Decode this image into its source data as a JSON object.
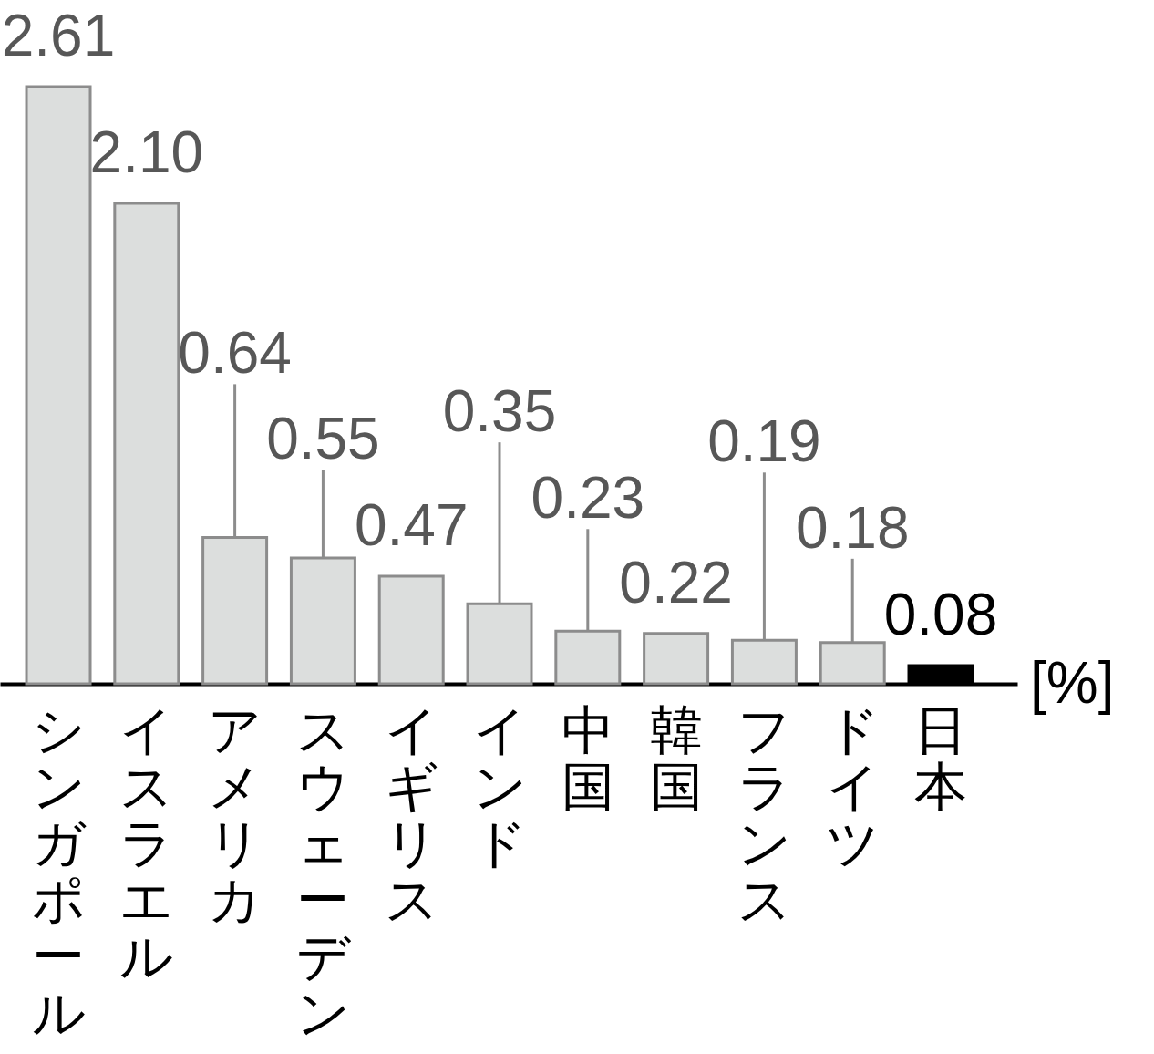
{
  "chart_data": {
    "type": "bar",
    "categories": [
      "シンガポール",
      "イスラエル",
      "アメリカ",
      "スウェーデン",
      "イギリス",
      "インド",
      "中国",
      "韓国",
      "フランス",
      "ドイツ",
      "日本"
    ],
    "values": [
      2.61,
      2.1,
      0.64,
      0.55,
      0.47,
      0.35,
      0.23,
      0.22,
      0.19,
      0.18,
      0.08
    ],
    "colors": [
      "#dcdedd",
      "#dcdedd",
      "#dcdedd",
      "#dcdedd",
      "#dcdedd",
      "#dcdedd",
      "#dcdedd",
      "#dcdedd",
      "#dcdedd",
      "#dcdedd",
      "#000000"
    ],
    "value_labels": [
      "2.61",
      "2.10",
      "0.64",
      "0.55",
      "0.47",
      "0.35",
      "0.23",
      "0.22",
      "0.19",
      "0.18",
      "0.08"
    ],
    "annotations": [
      "[%]"
    ]
  }
}
